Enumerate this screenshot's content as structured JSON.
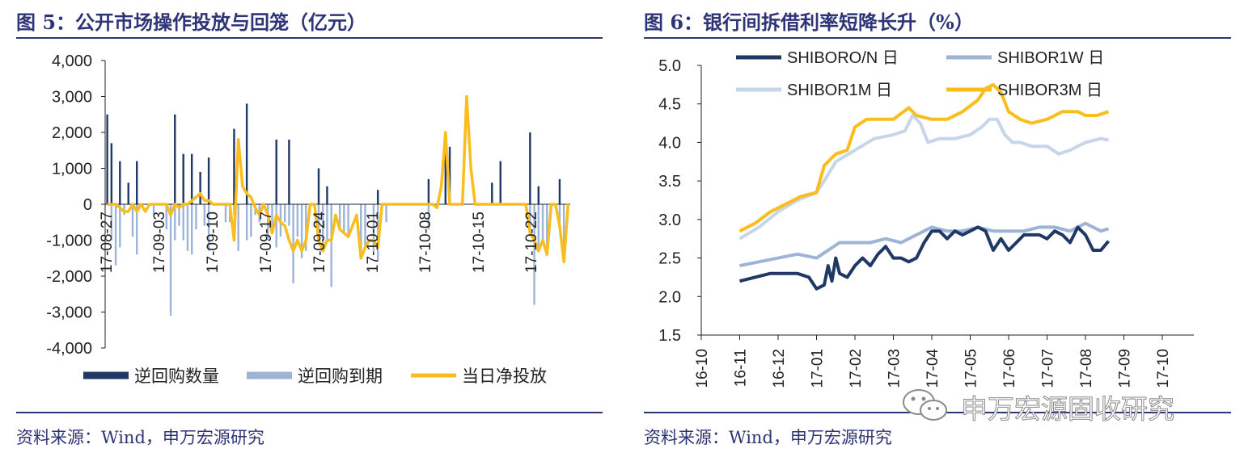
{
  "left": {
    "title": "图 5：公开市场操作投放与回笼（亿元）",
    "source": "资料来源：Wind，申万宏源研究"
  },
  "right": {
    "title": "图 6：银行间拆借利率短降长升（%）",
    "source": "资料来源：Wind，申万宏源研究"
  },
  "watermark": {
    "text": "申万宏源固收研究",
    "icon": "wechat-icon"
  },
  "colors": {
    "navy": "#1F3864",
    "lightblue": "#9DB4D6",
    "pale": "#C6D6EA",
    "gold": "#F9BE1D",
    "title": "#2E3577"
  },
  "chart_data": [
    {
      "type": "bar",
      "title": "图 5：公开市场操作投放与回笼（亿元）",
      "ylim": [
        -4000,
        4000
      ],
      "yticks": [
        4000,
        3000,
        2000,
        1000,
        0,
        -1000,
        -2000,
        -3000,
        -4000
      ],
      "ytick_labels": [
        "4,000",
        "3,000",
        "2,000",
        "1,000",
        "0",
        "-1,000",
        "-2,000",
        "-3,000",
        "-4,000"
      ],
      "x_tick_labels": [
        "17-08-27",
        "17-09-03",
        "17-09-10",
        "17-09-17",
        "17-09-24",
        "17-10-01",
        "17-10-08",
        "17-10-15",
        "17-10-22"
      ],
      "legend": [
        "逆回购数量",
        "逆回购到期",
        "当日净投放"
      ],
      "legend_position": "bottom",
      "series": [
        {
          "name": "逆回购数量",
          "kind": "bar",
          "values": [
            2500,
            1700,
            0,
            1200,
            0,
            600,
            0,
            1200,
            0,
            0,
            0,
            0,
            0,
            0,
            0,
            0,
            2500,
            0,
            1400,
            0,
            1400,
            0,
            900,
            0,
            1300,
            0,
            0,
            0,
            0,
            0,
            2100,
            0,
            0,
            2800,
            0,
            0,
            0,
            0,
            0,
            0,
            1800,
            0,
            0,
            1800,
            0,
            0,
            0,
            0,
            0,
            0,
            1000,
            0,
            500,
            0,
            0,
            0,
            0,
            0,
            0,
            0,
            0,
            0,
            0,
            0,
            400,
            0,
            0,
            0,
            0,
            0,
            0,
            0,
            0,
            0,
            0,
            0,
            700,
            0,
            0,
            0,
            1800,
            1600,
            0,
            0,
            0,
            0,
            0,
            0,
            0,
            0,
            0,
            600,
            0,
            1200,
            0,
            0,
            0,
            0,
            0,
            0,
            2000,
            0,
            500,
            0,
            0,
            0,
            0,
            700,
            0,
            0
          ]
        },
        {
          "name": "逆回购到期",
          "kind": "bar",
          "values": [
            0,
            -1000,
            -1700,
            -1200,
            -300,
            0,
            -900,
            -1400,
            0,
            0,
            0,
            -300,
            0,
            0,
            -700,
            -3100,
            -1000,
            -600,
            -1000,
            -1300,
            -1400,
            -700,
            0,
            -600,
            -1300,
            0,
            0,
            0,
            -500,
            -500,
            -300,
            -1300,
            0,
            -1000,
            -900,
            -300,
            -500,
            0,
            -1000,
            -800,
            -1200,
            -900,
            -500,
            -600,
            -2200,
            -900,
            -1500,
            -1300,
            0,
            0,
            -800,
            -1300,
            -1000,
            -2300,
            0,
            -700,
            -800,
            -900,
            0,
            0,
            -1500,
            -1200,
            0,
            -1300,
            -1600,
            0,
            -500,
            0,
            0,
            0,
            0,
            0,
            0,
            0,
            0,
            0,
            -700,
            0,
            0,
            0,
            0,
            0,
            0,
            0,
            0,
            0,
            0,
            0,
            0,
            0,
            0,
            0,
            0,
            0,
            0,
            0,
            0,
            0,
            0,
            0,
            -800,
            -2800,
            -1300,
            -1000,
            -1400,
            0,
            0,
            -600,
            -1200,
            0
          ]
        },
        {
          "name": "当日净投放",
          "kind": "line",
          "values": [
            0,
            0,
            0,
            -100,
            -200,
            -200,
            0,
            -200,
            0,
            -200,
            0,
            0,
            0,
            0,
            0,
            -300,
            0,
            -100,
            0,
            0,
            100,
            200,
            300,
            100,
            100,
            0,
            0,
            0,
            0,
            0,
            -1000,
            1800,
            500,
            300,
            200,
            -100,
            -300,
            0,
            -300,
            -800,
            -300,
            -500,
            -600,
            -1000,
            -1300,
            -1000,
            -1300,
            -1000,
            0,
            0,
            -1000,
            -1300,
            -1000,
            -1000,
            -300,
            -700,
            -800,
            -900,
            -600,
            -300,
            -1500,
            -1200,
            -1000,
            -1000,
            -1200,
            0,
            0,
            0,
            0,
            0,
            0,
            0,
            0,
            0,
            0,
            0,
            0,
            0,
            -100,
            500,
            2000,
            0,
            0,
            0,
            0,
            3000,
            1000,
            0,
            0,
            0,
            0,
            0,
            0,
            0,
            0,
            0,
            0,
            0,
            0,
            0,
            -800,
            -1000,
            -1300,
            -1000,
            -1400,
            0,
            0,
            -600,
            -1600,
            0
          ]
        }
      ]
    },
    {
      "type": "line",
      "title": "图 6：银行间拆借利率短降长升（%）",
      "ylim": [
        1.5,
        5.0
      ],
      "yticks": [
        1.5,
        2.0,
        2.5,
        3.0,
        3.5,
        4.0,
        4.5,
        5.0
      ],
      "ytick_labels": [
        "1.5",
        "2.0",
        "2.5",
        "3.0",
        "3.5",
        "4.0",
        "4.5",
        "5.0"
      ],
      "x_tick_labels": [
        "16-10",
        "16-11",
        "16-12",
        "17-01",
        "17-02",
        "17-03",
        "17-04",
        "17-05",
        "17-06",
        "17-07",
        "17-08",
        "17-09",
        "17-10"
      ],
      "legend_position": "top-left",
      "series": [
        {
          "name": "SHIBORO/N 日",
          "color": "#1F3864",
          "points": [
            [
              1,
              2.2
            ],
            [
              1.4,
              2.25
            ],
            [
              1.8,
              2.3
            ],
            [
              2.2,
              2.3
            ],
            [
              2.5,
              2.3
            ],
            [
              2.8,
              2.25
            ],
            [
              3.0,
              2.1
            ],
            [
              3.2,
              2.15
            ],
            [
              3.3,
              2.4
            ],
            [
              3.4,
              2.2
            ],
            [
              3.5,
              2.5
            ],
            [
              3.6,
              2.3
            ],
            [
              3.8,
              2.25
            ],
            [
              4.0,
              2.4
            ],
            [
              4.2,
              2.5
            ],
            [
              4.4,
              2.4
            ],
            [
              4.6,
              2.55
            ],
            [
              4.8,
              2.65
            ],
            [
              5.0,
              2.5
            ],
            [
              5.2,
              2.5
            ],
            [
              5.4,
              2.45
            ],
            [
              5.6,
              2.5
            ],
            [
              5.8,
              2.7
            ],
            [
              6.0,
              2.85
            ],
            [
              6.2,
              2.85
            ],
            [
              6.4,
              2.75
            ],
            [
              6.6,
              2.85
            ],
            [
              6.8,
              2.8
            ],
            [
              7.0,
              2.85
            ],
            [
              7.2,
              2.9
            ],
            [
              7.4,
              2.85
            ],
            [
              7.6,
              2.6
            ],
            [
              7.8,
              2.75
            ],
            [
              8.0,
              2.6
            ],
            [
              8.2,
              2.7
            ],
            [
              8.4,
              2.8
            ],
            [
              8.6,
              2.8
            ],
            [
              8.8,
              2.8
            ],
            [
              9.0,
              2.75
            ],
            [
              9.2,
              2.85
            ],
            [
              9.4,
              2.8
            ],
            [
              9.6,
              2.7
            ],
            [
              9.8,
              2.9
            ],
            [
              10.0,
              2.8
            ],
            [
              10.2,
              2.6
            ],
            [
              10.4,
              2.6
            ],
            [
              10.6,
              2.72
            ]
          ]
        },
        {
          "name": "SHIBOR1W 日",
          "color": "#9DB4D6",
          "points": [
            [
              1,
              2.4
            ],
            [
              1.5,
              2.45
            ],
            [
              2.0,
              2.5
            ],
            [
              2.5,
              2.55
            ],
            [
              3.0,
              2.5
            ],
            [
              3.3,
              2.6
            ],
            [
              3.6,
              2.7
            ],
            [
              4.0,
              2.7
            ],
            [
              4.4,
              2.7
            ],
            [
              4.8,
              2.75
            ],
            [
              5.2,
              2.7
            ],
            [
              5.6,
              2.8
            ],
            [
              6.0,
              2.9
            ],
            [
              6.4,
              2.85
            ],
            [
              6.8,
              2.85
            ],
            [
              7.2,
              2.9
            ],
            [
              7.6,
              2.85
            ],
            [
              8.0,
              2.85
            ],
            [
              8.4,
              2.85
            ],
            [
              8.8,
              2.9
            ],
            [
              9.2,
              2.9
            ],
            [
              9.6,
              2.85
            ],
            [
              10.0,
              2.95
            ],
            [
              10.4,
              2.85
            ],
            [
              10.6,
              2.88
            ]
          ]
        },
        {
          "name": "SHIBOR1M 日",
          "color": "#C6D6EA",
          "points": [
            [
              1,
              2.75
            ],
            [
              1.5,
              2.9
            ],
            [
              2.0,
              3.1
            ],
            [
              2.5,
              3.25
            ],
            [
              3.0,
              3.35
            ],
            [
              3.2,
              3.5
            ],
            [
              3.5,
              3.75
            ],
            [
              4.0,
              3.9
            ],
            [
              4.5,
              4.05
            ],
            [
              5.0,
              4.1
            ],
            [
              5.3,
              4.15
            ],
            [
              5.5,
              4.35
            ],
            [
              5.7,
              4.25
            ],
            [
              5.9,
              4.0
            ],
            [
              6.2,
              4.05
            ],
            [
              6.6,
              4.05
            ],
            [
              7.0,
              4.1
            ],
            [
              7.3,
              4.2
            ],
            [
              7.5,
              4.3
            ],
            [
              7.7,
              4.3
            ],
            [
              7.9,
              4.1
            ],
            [
              8.1,
              4.0
            ],
            [
              8.3,
              4.0
            ],
            [
              8.6,
              3.95
            ],
            [
              9.0,
              3.95
            ],
            [
              9.3,
              3.85
            ],
            [
              9.6,
              3.9
            ],
            [
              10.0,
              4.0
            ],
            [
              10.4,
              4.05
            ],
            [
              10.6,
              4.03
            ]
          ]
        },
        {
          "name": "SHIBOR3M 日",
          "color": "#F9BE1D",
          "points": [
            [
              1,
              2.85
            ],
            [
              1.4,
              2.95
            ],
            [
              1.8,
              3.1
            ],
            [
              2.2,
              3.2
            ],
            [
              2.6,
              3.3
            ],
            [
              3.0,
              3.35
            ],
            [
              3.2,
              3.7
            ],
            [
              3.5,
              3.85
            ],
            [
              3.8,
              3.9
            ],
            [
              4.0,
              4.2
            ],
            [
              4.3,
              4.3
            ],
            [
              4.6,
              4.3
            ],
            [
              5.0,
              4.3
            ],
            [
              5.4,
              4.45
            ],
            [
              5.6,
              4.35
            ],
            [
              6.0,
              4.3
            ],
            [
              6.4,
              4.3
            ],
            [
              6.8,
              4.4
            ],
            [
              7.2,
              4.55
            ],
            [
              7.4,
              4.7
            ],
            [
              7.6,
              4.75
            ],
            [
              7.8,
              4.65
            ],
            [
              8.0,
              4.4
            ],
            [
              8.3,
              4.3
            ],
            [
              8.6,
              4.25
            ],
            [
              9.0,
              4.3
            ],
            [
              9.4,
              4.4
            ],
            [
              9.8,
              4.4
            ],
            [
              10.0,
              4.35
            ],
            [
              10.3,
              4.35
            ],
            [
              10.6,
              4.4
            ]
          ]
        }
      ]
    }
  ]
}
